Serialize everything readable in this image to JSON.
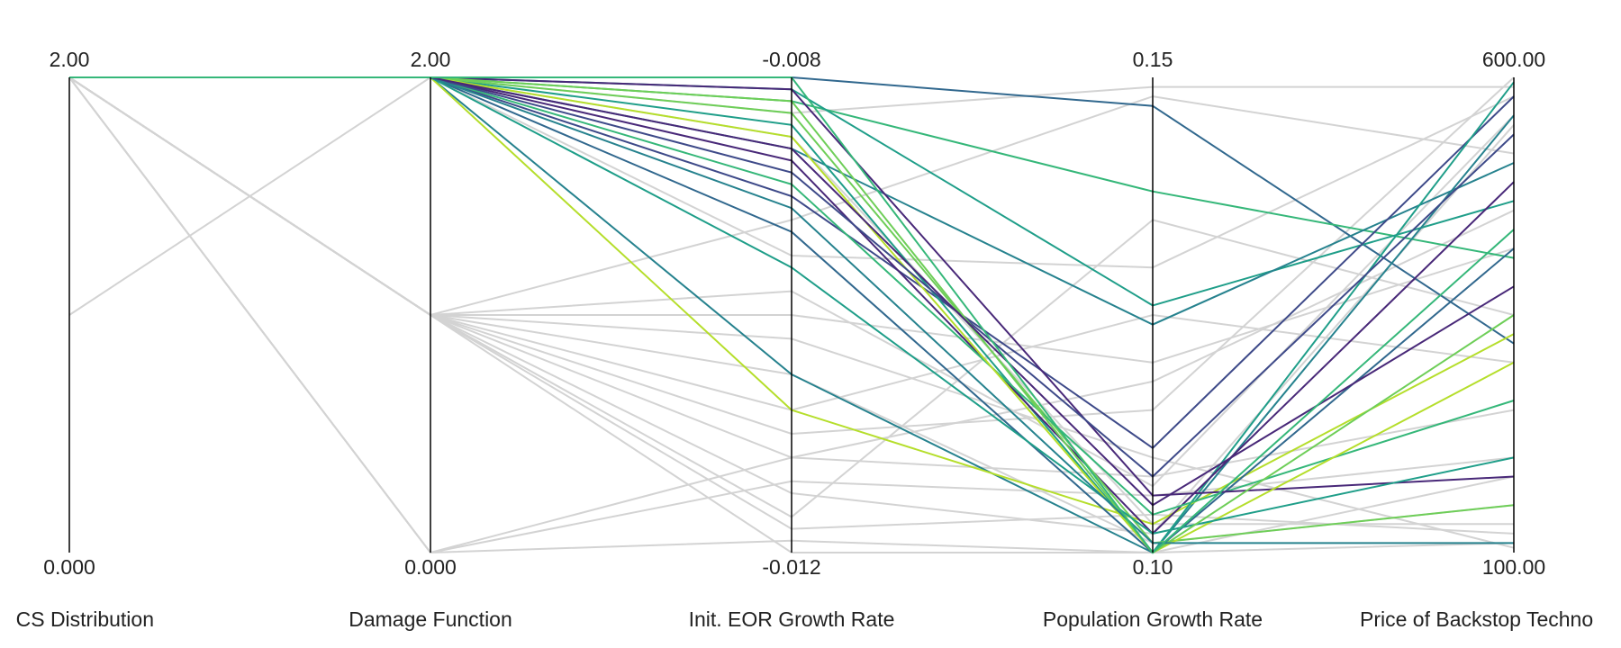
{
  "chart_data": {
    "type": "parallel",
    "dimensions": [
      {
        "name": "CS Distribution",
        "ylim": [
          0,
          2
        ],
        "yticks": [
          {
            "value": 0,
            "label": "0.000"
          },
          {
            "value": 2,
            "label": "2.00"
          }
        ]
      },
      {
        "name": "Damage Function",
        "ylim": [
          0,
          2
        ],
        "yticks": [
          {
            "value": 0,
            "label": "0.000"
          },
          {
            "value": 2,
            "label": "2.00"
          }
        ]
      },
      {
        "name": "Init. EOR Growth Rate",
        "ylim": [
          -0.012,
          -0.008
        ],
        "yticks": [
          {
            "value": -0.012,
            "label": "-0.012"
          },
          {
            "value": -0.008,
            "label": "-0.008"
          }
        ]
      },
      {
        "name": "Population Growth Rate",
        "ylim": [
          0.1,
          0.15
        ],
        "yticks": [
          {
            "value": 0.1,
            "label": "0.10"
          },
          {
            "value": 0.15,
            "label": "0.15"
          }
        ]
      },
      {
        "name": "Price of Backstop Techno",
        "ylim": [
          100,
          600
        ],
        "yticks": [
          {
            "value": 100,
            "label": "100.00"
          },
          {
            "value": 600,
            "label": "600.00"
          }
        ]
      }
    ],
    "lines": [
      {
        "values": [
          2,
          1,
          -0.0105,
          0.101,
          150
        ],
        "color": "#d3d3d3"
      },
      {
        "values": [
          2,
          1,
          -0.0118,
          0.104,
          120
        ],
        "color": "#d3d3d3"
      },
      {
        "values": [
          2,
          0,
          -0.0112,
          0.108,
          250
        ],
        "color": "#d3d3d3"
      },
      {
        "values": [
          1,
          2,
          -0.0095,
          0.13,
          580
        ],
        "color": "#d3d3d3"
      },
      {
        "values": [
          2,
          1,
          -0.01,
          0.12,
          420
        ],
        "color": "#d3d3d3"
      },
      {
        "values": [
          2,
          1,
          -0.0115,
          0.102,
          550
        ],
        "color": "#d3d3d3"
      },
      {
        "values": [
          2,
          1,
          -0.0108,
          0.125,
          300
        ],
        "color": "#d3d3d3"
      },
      {
        "values": [
          2,
          0,
          -0.0119,
          0.1,
          180
        ],
        "color": "#d3d3d3"
      },
      {
        "values": [
          2,
          1,
          -0.0092,
          0.148,
          520
        ],
        "color": "#d3d3d3"
      },
      {
        "values": [
          2,
          1,
          -0.011,
          0.115,
          600
        ],
        "color": "#d3d3d3"
      },
      {
        "values": [
          2,
          1,
          -0.0102,
          0.11,
          105
        ],
        "color": "#d3d3d3"
      },
      {
        "values": [
          2,
          1,
          -0.0117,
          0.135,
          350
        ],
        "color": "#d3d3d3"
      },
      {
        "values": [
          2,
          2,
          -0.0083,
          0.149,
          590
        ],
        "color": "#d3d3d3"
      },
      {
        "values": [
          2,
          2,
          -0.0085,
          0.103,
          130
        ],
        "color": "#d3d3d3"
      },
      {
        "values": [
          2,
          1,
          -0.0112,
          0.118,
          460
        ],
        "color": "#d3d3d3"
      },
      {
        "values": [
          2,
          0,
          -0.0114,
          0.106,
          200
        ],
        "color": "#d3d3d3"
      },
      {
        "values": [
          2,
          1,
          -0.0098,
          0.107,
          560
        ],
        "color": "#d3d3d3"
      },
      {
        "values": [
          2,
          1,
          -0.012,
          0.1,
          110
        ],
        "color": "#d3d3d3"
      },
      {
        "values": [
          2,
          2,
          -0.008,
          0.147,
          320
        ],
        "color": "#31688e"
      },
      {
        "values": [
          2,
          2,
          -0.0082,
          0.138,
          410
        ],
        "color": "#35b779"
      },
      {
        "values": [
          2,
          2,
          -0.0081,
          0.126,
          470
        ],
        "color": "#1f9e89"
      },
      {
        "values": [
          2,
          2,
          -0.0086,
          0.124,
          510
        ],
        "color": "#26828e"
      },
      {
        "values": [
          2,
          2,
          -0.009,
          0.111,
          580
        ],
        "color": "#3e4a89"
      },
      {
        "values": [
          2,
          2,
          -0.0105,
          0.1,
          560
        ],
        "color": "#26828e"
      },
      {
        "values": [
          2,
          2,
          -0.0108,
          0.103,
          330
        ],
        "color": "#b5de2b"
      },
      {
        "values": [
          2,
          2,
          -0.0084,
          0.1,
          595
        ],
        "color": "#1f9e89"
      },
      {
        "values": [
          2,
          2,
          -0.0087,
          0.102,
          490
        ],
        "color": "#482878"
      },
      {
        "values": [
          2,
          2,
          -0.0083,
          0.101,
          150
        ],
        "color": "#6ece58"
      },
      {
        "values": [
          2,
          2,
          -0.0089,
          0.104,
          260
        ],
        "color": "#35b779"
      },
      {
        "values": [
          2,
          2,
          -0.0093,
          0.1,
          420
        ],
        "color": "#31688e"
      },
      {
        "values": [
          2,
          2,
          -0.0081,
          0.106,
          180
        ],
        "color": "#482878"
      },
      {
        "values": [
          2,
          2,
          -0.0085,
          0.1,
          300
        ],
        "color": "#b5de2b"
      },
      {
        "values": [
          2,
          2,
          -0.0096,
          0.102,
          200
        ],
        "color": "#1f9e89"
      },
      {
        "values": [
          2,
          2,
          -0.0088,
          0.108,
          540
        ],
        "color": "#3e4a89"
      },
      {
        "values": [
          2,
          2,
          -0.0082,
          0.1,
          350
        ],
        "color": "#6ece58"
      },
      {
        "values": [
          2,
          2,
          -0.0091,
          0.101,
          110
        ],
        "color": "#26828e"
      },
      {
        "values": [
          2,
          2,
          -0.0086,
          0.105,
          380
        ],
        "color": "#482878"
      },
      {
        "values": [
          2,
          2,
          -0.008,
          0.1,
          440
        ],
        "color": "#35b779"
      }
    ]
  }
}
